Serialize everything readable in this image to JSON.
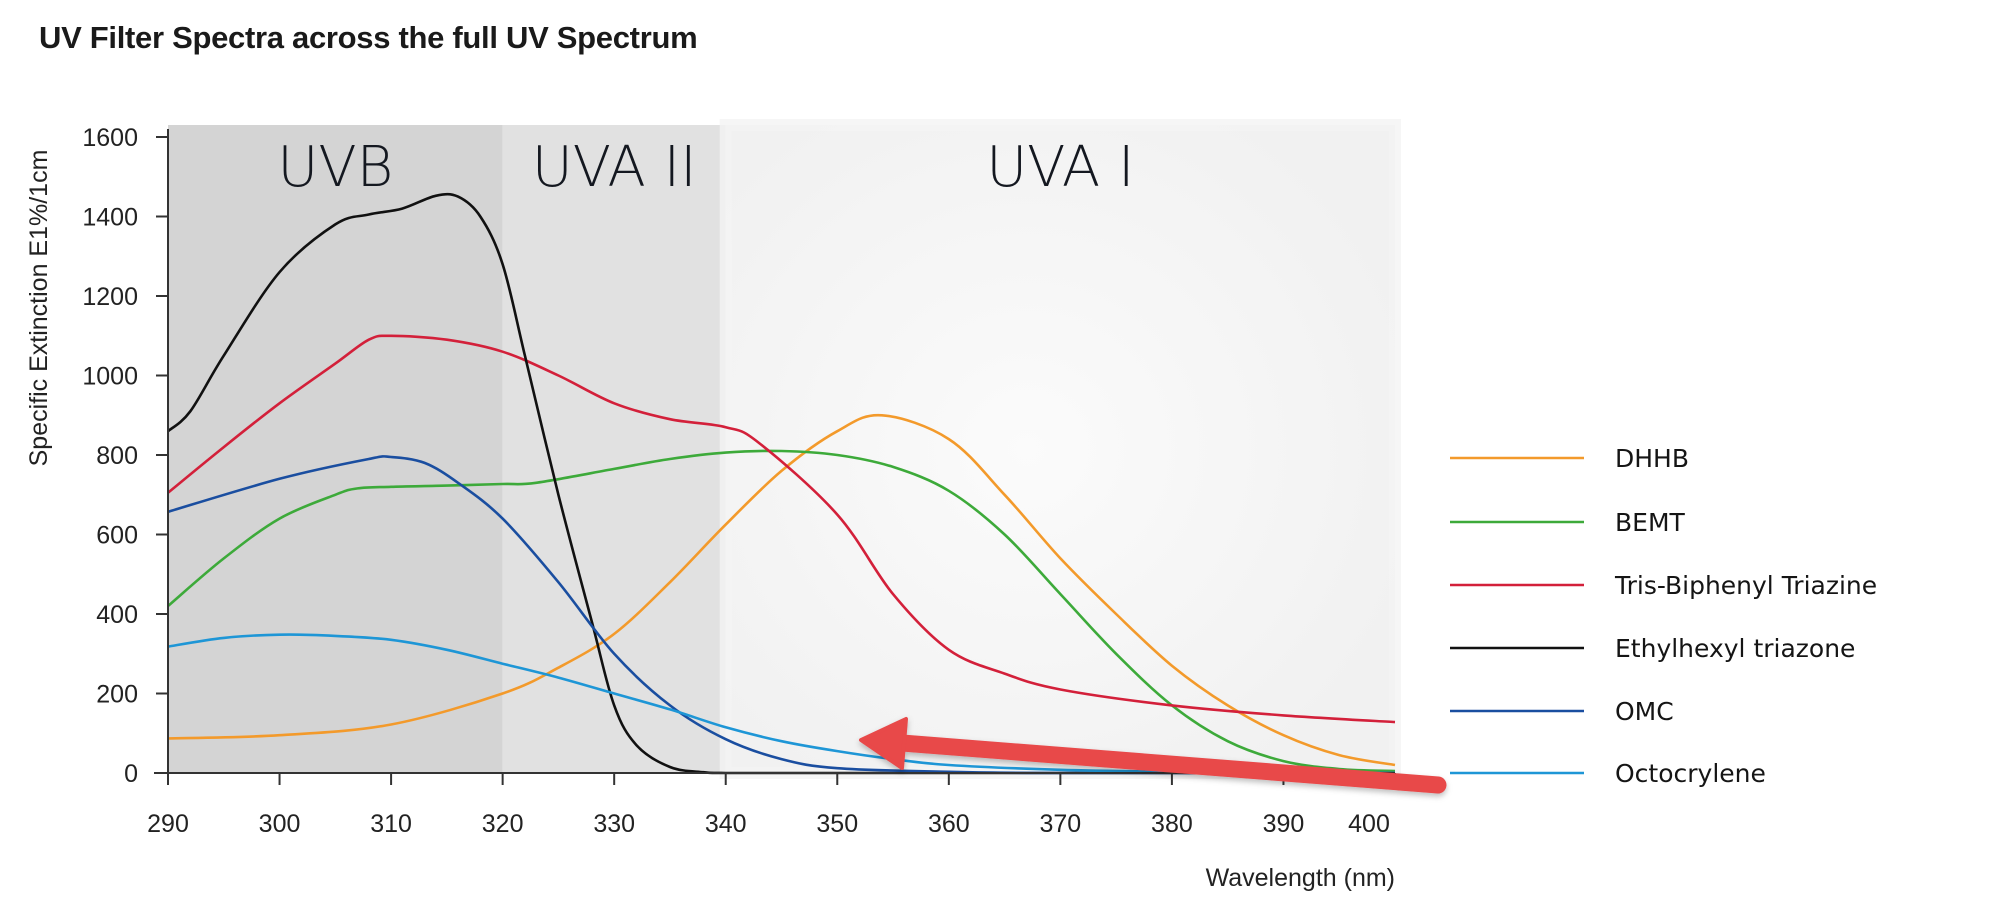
{
  "title": "UV Filter Spectra across the full UV Spectrum",
  "chart_data": {
    "type": "line",
    "title": "UV Filter Spectra across the full UV Spectrum",
    "xlabel": "Wavelength (nm)",
    "ylabel": "Specific Extinction E1%/1cm",
    "xlim": [
      290,
      400
    ],
    "ylim": [
      0,
      1600
    ],
    "xticks": [
      290,
      300,
      310,
      320,
      330,
      340,
      350,
      360,
      370,
      380,
      390,
      400
    ],
    "yticks": [
      0,
      200,
      400,
      600,
      800,
      1000,
      1200,
      1400,
      1600
    ],
    "grid": false,
    "legend_position": "right",
    "regions": [
      {
        "label": "UVB",
        "from": 290,
        "to": 320,
        "color": "#d4d4d4"
      },
      {
        "label": "UVA II",
        "from": 320,
        "to": 340,
        "color": "#e1e1e1"
      },
      {
        "label": "UVA I",
        "from": 340,
        "to": 400,
        "color": "#f4f4f4"
      }
    ],
    "series": [
      {
        "name": "DHHB",
        "color": "#f39a2b",
        "x": [
          290,
          300,
          310,
          320,
          325,
          330,
          335,
          340,
          345,
          350,
          354,
          360,
          365,
          370,
          375,
          380,
          385,
          390,
          395,
          400
        ],
        "y": [
          87,
          95,
          122,
          200,
          265,
          350,
          480,
          625,
          760,
          860,
          900,
          840,
          700,
          540,
          400,
          270,
          170,
          95,
          45,
          20
        ]
      },
      {
        "name": "BEMT",
        "color": "#3daa3a",
        "x": [
          290,
          295,
          300,
          305,
          307,
          310,
          315,
          320,
          323,
          330,
          335,
          340,
          345,
          350,
          355,
          360,
          365,
          370,
          375,
          380,
          385,
          390,
          395,
          400
        ],
        "y": [
          420,
          540,
          640,
          700,
          716,
          720,
          723,
          727,
          730,
          765,
          790,
          806,
          810,
          800,
          770,
          710,
          600,
          450,
          300,
          170,
          80,
          30,
          10,
          5
        ]
      },
      {
        "name": "Tris-Biphenyl Triazine",
        "color": "#d3203a",
        "x": [
          290,
          295,
          300,
          305,
          308,
          310,
          315,
          320,
          325,
          330,
          335,
          340,
          343,
          350,
          355,
          360,
          365,
          370,
          380,
          390,
          400
        ],
        "y": [
          705,
          820,
          930,
          1030,
          1090,
          1100,
          1090,
          1060,
          1000,
          930,
          890,
          870,
          830,
          650,
          450,
          310,
          250,
          210,
          170,
          145,
          128
        ]
      },
      {
        "name": "Ethylhexyl triazone",
        "color": "#111111",
        "x": [
          290,
          292,
          295,
          300,
          305,
          308,
          311,
          314,
          316,
          318,
          320,
          322,
          325,
          328,
          330,
          332,
          335,
          338,
          340,
          350,
          400
        ],
        "y": [
          860,
          910,
          1050,
          1260,
          1380,
          1405,
          1420,
          1452,
          1450,
          1400,
          1280,
          1050,
          700,
          380,
          170,
          70,
          15,
          2,
          0,
          0,
          0
        ]
      },
      {
        "name": "OMC",
        "color": "#1a4ea0",
        "x": [
          290,
          300,
          308,
          310,
          313,
          316,
          320,
          325,
          330,
          335,
          340,
          345,
          350,
          360,
          370,
          400
        ],
        "y": [
          657,
          740,
          790,
          795,
          780,
          730,
          640,
          480,
          300,
          170,
          85,
          35,
          12,
          3,
          0,
          0
        ]
      },
      {
        "name": "Octocrylene",
        "color": "#1e96d6",
        "x": [
          290,
          295,
          300,
          305,
          310,
          315,
          320,
          325,
          330,
          335,
          340,
          345,
          350,
          355,
          360,
          370,
          380,
          390,
          400
        ],
        "y": [
          318,
          340,
          348,
          345,
          335,
          310,
          275,
          240,
          200,
          160,
          115,
          80,
          55,
          35,
          20,
          8,
          3,
          1,
          0
        ]
      }
    ],
    "annotations": [
      {
        "type": "arrow",
        "color": "#e8484a",
        "description": "Red arrow pointing left from the Octocrylene legend entry toward ~352 nm near the baseline"
      }
    ]
  }
}
